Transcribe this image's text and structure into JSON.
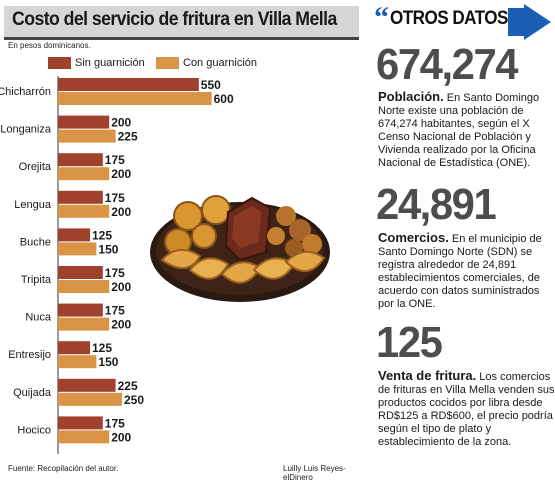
{
  "chart_data": {
    "type": "bar",
    "orientation": "horizontal",
    "title": "Costo del servicio de fritura en Villa Mella",
    "subtitle": "En pesos dominicanos.",
    "categories": [
      "Chicharrón",
      "Longaniza",
      "Orejita",
      "Lengua",
      "Buche",
      "Tripita",
      "Nuca",
      "Entresijo",
      "Quijada",
      "Hocico"
    ],
    "series": [
      {
        "name": "Sin guarnición",
        "color": "#a0412d",
        "values": [
          550,
          200,
          175,
          175,
          125,
          175,
          175,
          125,
          225,
          175
        ]
      },
      {
        "name": "Con guarnición",
        "color": "#d99447",
        "values": [
          600,
          225,
          200,
          200,
          150,
          200,
          200,
          150,
          250,
          200
        ]
      }
    ],
    "legend_position": "top",
    "grid": false
  },
  "footer": {
    "source": "Fuente: Recopilación del autor.",
    "credit": "Luilly Luis Reyes-elDinero"
  },
  "side": {
    "header": "OTROS DATOS",
    "header_color": "#1a5fb4",
    "facts": [
      {
        "number": "674,274",
        "lead": "Población.",
        "text": " En Santo Domingo Norte existe una población de 674,274 habitantes, según el X Censo Nacional de Población y Vivienda realizado por la Oficina Nacional de Estadística (ONE)."
      },
      {
        "number": "24,891",
        "lead": "Comercios.",
        "text": " En el municipio de Santo Domingo Norte (SDN) se registra alrededor de 24,891 establecimientos comerciales, de acuerdo con datos suministrados por la ONE."
      },
      {
        "number": "125",
        "lead": "Venta de fritura.",
        "text": " Los comercios de frituras en Villa Mella venden sus productos cocidos por libra desde RD$125 a RD$600, el precio podría según el tipo de plato y establecimiento de la zona."
      }
    ]
  }
}
